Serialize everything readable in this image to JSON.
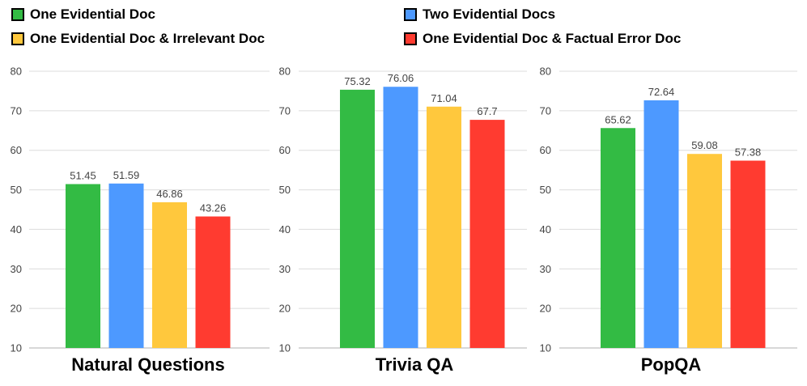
{
  "legend": [
    {
      "label": "One Evidential Doc",
      "color": "#33bb44"
    },
    {
      "label": "Two Evidential Docs",
      "color": "#4d99ff"
    },
    {
      "label": "One Evidential Doc & Irrelevant Doc",
      "color": "#ffc83d"
    },
    {
      "label": "One Evidential Doc & Factual Error Doc",
      "color": "#ff3b30"
    }
  ],
  "chart_data": [
    {
      "type": "bar",
      "title": "Natural Questions",
      "categories": [
        "One Evidential Doc",
        "Two Evidential Docs",
        "One Evidential Doc & Irrelevant Doc",
        "One Evidential Doc & Factual Error Doc"
      ],
      "values": [
        51.45,
        51.59,
        46.86,
        43.26
      ],
      "value_labels": [
        "51.45",
        "51.59",
        "46.86",
        "43.26"
      ],
      "ylim": [
        10,
        80
      ],
      "yticks": [
        "10",
        "20",
        "30",
        "40",
        "50",
        "60",
        "70",
        "80"
      ],
      "grid": true
    },
    {
      "type": "bar",
      "title": "Trivia QA",
      "categories": [
        "One Evidential Doc",
        "Two Evidential Docs",
        "One Evidential Doc & Irrelevant Doc",
        "One Evidential Doc & Factual Error Doc"
      ],
      "values": [
        75.32,
        76.06,
        71.04,
        67.7
      ],
      "value_labels": [
        "75.32",
        "76.06",
        "71.04",
        "67.7"
      ],
      "ylim": [
        10,
        80
      ],
      "yticks": [
        "10",
        "20",
        "30",
        "40",
        "50",
        "60",
        "70",
        "80"
      ],
      "grid": true
    },
    {
      "type": "bar",
      "title": "PopQA",
      "categories": [
        "One Evidential Doc",
        "Two Evidential Docs",
        "One Evidential Doc & Irrelevant Doc",
        "One Evidential Doc & Factual Error Doc"
      ],
      "values": [
        65.62,
        72.64,
        59.08,
        57.38
      ],
      "value_labels": [
        "65.62",
        "72.64",
        "59.08",
        "57.38"
      ],
      "ylim": [
        10,
        80
      ],
      "yticks": [
        "10",
        "20",
        "30",
        "40",
        "50",
        "60",
        "70",
        "80"
      ],
      "grid": true
    }
  ]
}
